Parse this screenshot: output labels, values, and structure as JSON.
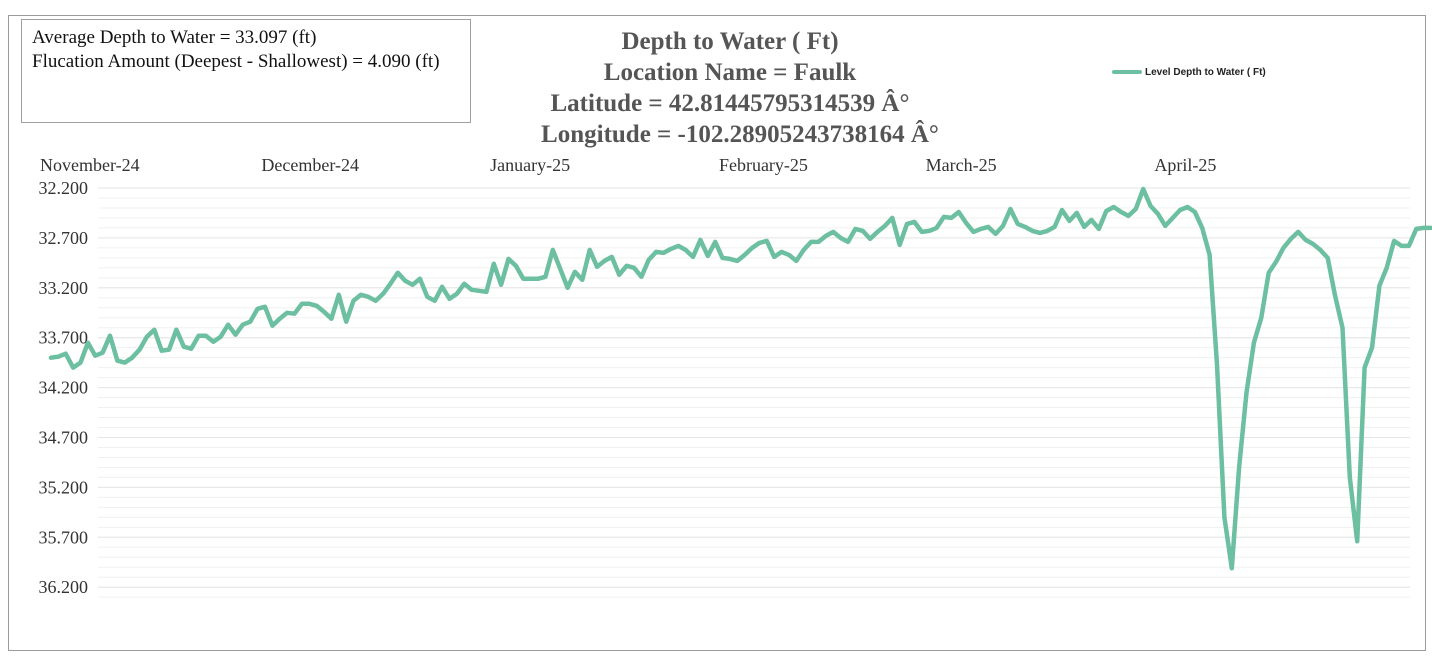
{
  "stats": {
    "line1": "Average Depth to Water = 33.097 (ft)",
    "line2": "Flucation Amount (Deepest - Shallowest) = 4.090 (ft)"
  },
  "colors": {
    "series": "#6cbfa0",
    "grid": "#e6e6e6",
    "axis_text": "#333333",
    "title": "#555555"
  },
  "chart_data": {
    "type": "line",
    "title": "Depth to Water ( Ft)",
    "subtitle_lines": [
      "Location Name = Faulk",
      "Latitude = 42.81445795314539 Â°",
      "Longitude = -102.28905243738164 Â°"
    ],
    "xlabel": "",
    "ylabel": "",
    "y_inverted": true,
    "ylim": [
      32.0,
      36.3
    ],
    "y_ticks": [
      "32.200",
      "32.700",
      "33.200",
      "33.700",
      "34.200",
      "34.700",
      "35.200",
      "35.700",
      "36.200"
    ],
    "x_axis_position": "top",
    "x_tick_labels": [
      "November-24",
      "December-24",
      "January-25",
      "February-25",
      "March-25",
      "April-25"
    ],
    "x_tick_dates": [
      "2024-11-01",
      "2024-12-01",
      "2025-01-01",
      "2025-02-01",
      "2025-03-01",
      "2025-04-01"
    ],
    "legend": {
      "label": "Level Depth to Water ( Ft)",
      "position": "top-right"
    },
    "grid": true,
    "series": [
      {
        "name": "Level Depth to Water ( Ft)",
        "points": [
          [
            "2024-10-24",
            33.9
          ],
          [
            "2024-10-25",
            33.89
          ],
          [
            "2024-10-26",
            33.86
          ],
          [
            "2024-10-27",
            34.0
          ],
          [
            "2024-10-28",
            33.95
          ],
          [
            "2024-10-29",
            33.75
          ],
          [
            "2024-10-30",
            33.88
          ],
          [
            "2024-10-31",
            33.85
          ],
          [
            "2024-11-01",
            33.68
          ],
          [
            "2024-11-02",
            33.93
          ],
          [
            "2024-11-03",
            33.95
          ],
          [
            "2024-11-04",
            33.9
          ],
          [
            "2024-11-05",
            33.82
          ],
          [
            "2024-11-06",
            33.69
          ],
          [
            "2024-11-07",
            33.62
          ],
          [
            "2024-11-08",
            33.83
          ],
          [
            "2024-11-09",
            33.82
          ],
          [
            "2024-11-10",
            33.62
          ],
          [
            "2024-11-11",
            33.79
          ],
          [
            "2024-11-12",
            33.81
          ],
          [
            "2024-11-13",
            33.68
          ],
          [
            "2024-11-14",
            33.68
          ],
          [
            "2024-11-15",
            33.74
          ],
          [
            "2024-11-16",
            33.69
          ],
          [
            "2024-11-17",
            33.57
          ],
          [
            "2024-11-18",
            33.67
          ],
          [
            "2024-11-19",
            33.57
          ],
          [
            "2024-11-20",
            33.54
          ],
          [
            "2024-11-21",
            33.41
          ],
          [
            "2024-11-22",
            33.39
          ],
          [
            "2024-11-23",
            33.58
          ],
          [
            "2024-11-24",
            33.51
          ],
          [
            "2024-11-25",
            33.45
          ],
          [
            "2024-11-26",
            33.46
          ],
          [
            "2024-11-27",
            33.36
          ],
          [
            "2024-11-28",
            33.36
          ],
          [
            "2024-11-29",
            33.38
          ],
          [
            "2024-11-30",
            33.44
          ],
          [
            "2024-12-01",
            33.51
          ],
          [
            "2024-12-02",
            33.27
          ],
          [
            "2024-12-03",
            33.54
          ],
          [
            "2024-12-04",
            33.33
          ],
          [
            "2024-12-05",
            33.27
          ],
          [
            "2024-12-06",
            33.29
          ],
          [
            "2024-12-07",
            33.33
          ],
          [
            "2024-12-08",
            33.26
          ],
          [
            "2024-12-09",
            33.16
          ],
          [
            "2024-12-10",
            33.05
          ],
          [
            "2024-12-11",
            33.13
          ],
          [
            "2024-12-12",
            33.17
          ],
          [
            "2024-12-13",
            33.11
          ],
          [
            "2024-12-14",
            33.29
          ],
          [
            "2024-12-15",
            33.33
          ],
          [
            "2024-12-16",
            33.19
          ],
          [
            "2024-12-17",
            33.31
          ],
          [
            "2024-12-18",
            33.26
          ],
          [
            "2024-12-19",
            33.16
          ],
          [
            "2024-12-20",
            33.22
          ],
          [
            "2024-12-21",
            33.23
          ],
          [
            "2024-12-22",
            33.24
          ],
          [
            "2024-12-23",
            32.96
          ],
          [
            "2024-12-24",
            33.17
          ],
          [
            "2024-12-25",
            32.91
          ],
          [
            "2024-12-26",
            32.98
          ],
          [
            "2024-12-27",
            33.11
          ],
          [
            "2024-12-28",
            33.11
          ],
          [
            "2024-12-29",
            33.11
          ],
          [
            "2024-12-30",
            33.09
          ],
          [
            "2024-12-31",
            32.82
          ],
          [
            "2025-01-01",
            33.01
          ],
          [
            "2025-01-02",
            33.2
          ],
          [
            "2025-01-03",
            33.04
          ],
          [
            "2025-01-04",
            33.12
          ],
          [
            "2025-01-05",
            32.82
          ],
          [
            "2025-01-06",
            32.99
          ],
          [
            "2025-01-07",
            32.93
          ],
          [
            "2025-01-08",
            32.89
          ],
          [
            "2025-01-09",
            33.07
          ],
          [
            "2025-01-10",
            32.98
          ],
          [
            "2025-01-11",
            33.0
          ],
          [
            "2025-01-12",
            33.09
          ],
          [
            "2025-01-13",
            32.92
          ],
          [
            "2025-01-14",
            32.84
          ],
          [
            "2025-01-15",
            32.85
          ],
          [
            "2025-01-16",
            32.81
          ],
          [
            "2025-01-17",
            32.78
          ],
          [
            "2025-01-18",
            32.82
          ],
          [
            "2025-01-19",
            32.89
          ],
          [
            "2025-01-20",
            32.72
          ],
          [
            "2025-01-21",
            32.88
          ],
          [
            "2025-01-22",
            32.74
          ],
          [
            "2025-01-23",
            32.9
          ],
          [
            "2025-01-24",
            32.91
          ],
          [
            "2025-01-25",
            32.93
          ],
          [
            "2025-01-26",
            32.87
          ],
          [
            "2025-01-27",
            32.8
          ],
          [
            "2025-01-28",
            32.75
          ],
          [
            "2025-01-29",
            32.73
          ],
          [
            "2025-01-30",
            32.89
          ],
          [
            "2025-01-31",
            32.84
          ],
          [
            "2025-02-01",
            32.87
          ],
          [
            "2025-02-02",
            32.93
          ],
          [
            "2025-02-03",
            32.82
          ],
          [
            "2025-02-04",
            32.74
          ],
          [
            "2025-02-05",
            32.74
          ],
          [
            "2025-02-06",
            32.68
          ],
          [
            "2025-02-07",
            32.64
          ],
          [
            "2025-02-08",
            32.7
          ],
          [
            "2025-02-09",
            32.74
          ],
          [
            "2025-02-10",
            32.61
          ],
          [
            "2025-02-11",
            32.63
          ],
          [
            "2025-02-12",
            32.71
          ],
          [
            "2025-02-13",
            32.64
          ],
          [
            "2025-02-14",
            32.58
          ],
          [
            "2025-02-15",
            32.5
          ],
          [
            "2025-02-16",
            32.77
          ],
          [
            "2025-02-17",
            32.56
          ],
          [
            "2025-02-18",
            32.54
          ],
          [
            "2025-02-19",
            32.64
          ],
          [
            "2025-02-20",
            32.63
          ],
          [
            "2025-02-21",
            32.6
          ],
          [
            "2025-02-22",
            32.49
          ],
          [
            "2025-02-23",
            32.5
          ],
          [
            "2025-02-24",
            32.44
          ],
          [
            "2025-02-25",
            32.55
          ],
          [
            "2025-02-26",
            32.64
          ],
          [
            "2025-02-27",
            32.61
          ],
          [
            "2025-02-28",
            32.59
          ],
          [
            "2025-03-01",
            32.66
          ],
          [
            "2025-03-02",
            32.58
          ],
          [
            "2025-03-03",
            32.41
          ],
          [
            "2025-03-04",
            32.56
          ],
          [
            "2025-03-05",
            32.59
          ],
          [
            "2025-03-06",
            32.63
          ],
          [
            "2025-03-07",
            32.65
          ],
          [
            "2025-03-08",
            32.63
          ],
          [
            "2025-03-09",
            32.59
          ],
          [
            "2025-03-10",
            32.42
          ],
          [
            "2025-03-11",
            32.53
          ],
          [
            "2025-03-12",
            32.45
          ],
          [
            "2025-03-13",
            32.59
          ],
          [
            "2025-03-14",
            32.52
          ],
          [
            "2025-03-15",
            32.61
          ],
          [
            "2025-03-16",
            32.43
          ],
          [
            "2025-03-17",
            32.39
          ],
          [
            "2025-03-18",
            32.44
          ],
          [
            "2025-03-19",
            32.48
          ],
          [
            "2025-03-20",
            32.41
          ],
          [
            "2025-03-21",
            32.21
          ],
          [
            "2025-03-22",
            32.38
          ],
          [
            "2025-03-23",
            32.46
          ],
          [
            "2025-03-24",
            32.58
          ],
          [
            "2025-03-25",
            32.5
          ],
          [
            "2025-03-26",
            32.42
          ],
          [
            "2025-03-27",
            32.39
          ],
          [
            "2025-03-28",
            32.44
          ],
          [
            "2025-03-29",
            32.6
          ],
          [
            "2025-03-30",
            32.87
          ],
          [
            "2025-03-31",
            33.97
          ],
          [
            "2025-04-01",
            35.5
          ],
          [
            "2025-04-02",
            36.01
          ],
          [
            "2025-04-03",
            35.0
          ],
          [
            "2025-04-04",
            34.25
          ],
          [
            "2025-04-05",
            33.75
          ],
          [
            "2025-04-06",
            33.5
          ],
          [
            "2025-04-07",
            33.05
          ],
          [
            "2025-04-08",
            32.94
          ],
          [
            "2025-04-09",
            32.8
          ],
          [
            "2025-04-10",
            32.71
          ],
          [
            "2025-04-11",
            32.64
          ],
          [
            "2025-04-12",
            32.72
          ],
          [
            "2025-04-13",
            32.76
          ],
          [
            "2025-04-14",
            32.82
          ],
          [
            "2025-04-15",
            32.9
          ],
          [
            "2025-04-16",
            33.28
          ],
          [
            "2025-04-17",
            33.6
          ],
          [
            "2025-04-18",
            35.1
          ],
          [
            "2025-04-19",
            35.74
          ],
          [
            "2025-04-20",
            34.0
          ],
          [
            "2025-04-21",
            33.8
          ],
          [
            "2025-04-22",
            33.18
          ],
          [
            "2025-04-23",
            33.0
          ],
          [
            "2025-04-24",
            32.73
          ],
          [
            "2025-04-25",
            32.78
          ],
          [
            "2025-04-26",
            32.78
          ],
          [
            "2025-04-27",
            32.61
          ],
          [
            "2025-04-28",
            32.6
          ],
          [
            "2025-04-29",
            32.6
          ]
        ]
      }
    ]
  }
}
